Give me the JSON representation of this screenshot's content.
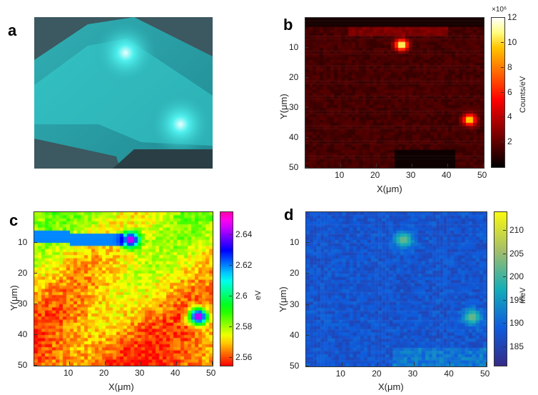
{
  "panels": {
    "a": {
      "letter": "a"
    },
    "b": {
      "letter": "b",
      "xlabel": "X(μm)",
      "ylabel": "Y(μm)",
      "cbar_label": "Counts/eV",
      "cbar_exponent": "×10⁶"
    },
    "c": {
      "letter": "c",
      "xlabel": "X(μm)",
      "ylabel": "Y(μm)",
      "cbar_label": "eV"
    },
    "d": {
      "letter": "d",
      "xlabel": "X(μm)",
      "ylabel": "Y(μm)",
      "cbar_label": "meV"
    }
  },
  "colors": {
    "hot_low": "#000000",
    "hot_mid": "#b00000",
    "hot_high": "#ffffff",
    "optical_bg": "#3a5a63",
    "optical_glow": "#3fe0df"
  },
  "chart_data": [
    {
      "type": "image",
      "panel": "a",
      "description_visible": "optical micrograph",
      "bright_spots": 2
    },
    {
      "type": "heatmap",
      "panel": "b",
      "xlabel": "X(μm)",
      "ylabel": "Y(μm)",
      "x_ticks": [
        10,
        20,
        30,
        40,
        50
      ],
      "y_ticks": [
        10,
        20,
        30,
        40,
        50
      ],
      "xlim": [
        0,
        50
      ],
      "ylim": [
        0,
        50
      ],
      "colormap": "hot",
      "colorbar": {
        "label": "Counts/eV",
        "exponent": "×10⁶",
        "ticks": [
          2,
          4,
          6,
          8,
          10,
          12
        ],
        "range": [
          0,
          12
        ]
      },
      "hotspots": [
        {
          "x": 27,
          "y": 9,
          "value": 12
        },
        {
          "x": 46,
          "y": 34,
          "value": 11
        }
      ],
      "background_value": 1.5
    },
    {
      "type": "heatmap",
      "panel": "c",
      "xlabel": "X(μm)",
      "ylabel": "Y(μm)",
      "x_ticks": [
        10,
        20,
        30,
        40,
        50
      ],
      "y_ticks": [
        10,
        20,
        30,
        40,
        50
      ],
      "xlim": [
        0,
        50
      ],
      "ylim": [
        0,
        50
      ],
      "colormap": "hsv",
      "colorbar": {
        "label": "eV",
        "ticks": [
          2.56,
          2.58,
          2.6,
          2.62,
          2.64
        ],
        "range": [
          2.555,
          2.655
        ]
      },
      "hotspots": [
        {
          "x": 27,
          "y": 9,
          "value": 2.65
        },
        {
          "x": 46,
          "y": 34,
          "value": 2.65
        }
      ],
      "background_value": 2.58
    },
    {
      "type": "heatmap",
      "panel": "d",
      "xlabel": "X(μm)",
      "ylabel": "Y(μm)",
      "x_ticks": [
        10,
        20,
        30,
        40,
        50
      ],
      "y_ticks": [
        10,
        20,
        30,
        40,
        50
      ],
      "xlim": [
        0,
        50
      ],
      "ylim": [
        0,
        50
      ],
      "colormap": "parula",
      "colorbar": {
        "label": "meV",
        "ticks": [
          185,
          190,
          195,
          200,
          205,
          210
        ],
        "range": [
          181,
          214
        ]
      },
      "hotspots": [
        {
          "x": 27,
          "y": 9,
          "value": 203
        },
        {
          "x": 46,
          "y": 34,
          "value": 203
        }
      ],
      "background_value": 188
    }
  ]
}
